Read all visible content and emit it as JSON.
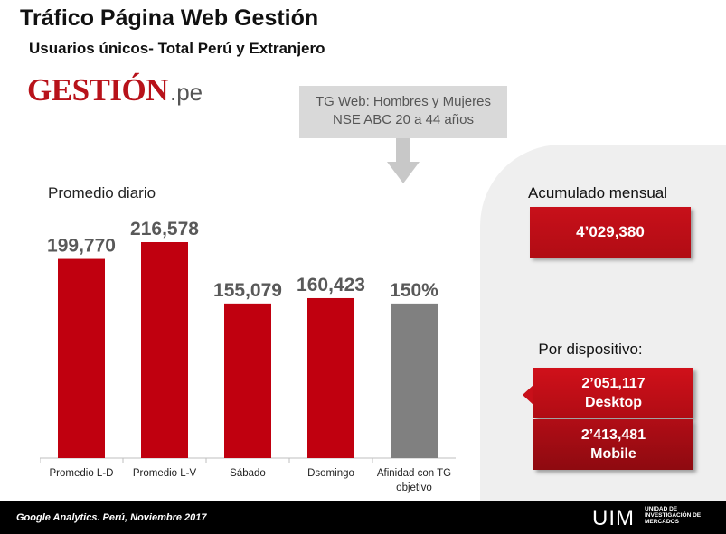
{
  "header": {
    "title": "Tráfico Página Web Gestión",
    "subtitle": "Usuarios únicos- Total Perú y Extranjero"
  },
  "logo": {
    "main": "GESTIÓN",
    "sub": ".pe"
  },
  "callout": {
    "line1": "TG Web: Hombres y Mujeres",
    "line2": "NSE ABC 20 a 44 años"
  },
  "chart_label": "Promedio diario",
  "chart_data": {
    "type": "bar",
    "categories": [
      "Promedio L-D",
      "Promedio L-V",
      "Sábado",
      "Dsomingo",
      "Afinidad con TG objetivo"
    ],
    "category_lines": [
      [
        "Promedio L-D"
      ],
      [
        "Promedio L-V"
      ],
      [
        "Sábado"
      ],
      [
        "Dsomingo"
      ],
      [
        "Afinidad con TG",
        "objetivo"
      ]
    ],
    "values": [
      199770,
      216578,
      155079,
      160423,
      150
    ],
    "data_labels": [
      "199,770",
      "216,578",
      "155,079",
      "160,423",
      "150%"
    ],
    "colors": [
      "#c0000f",
      "#c0000f",
      "#c0000f",
      "#c0000f",
      "#808080"
    ],
    "grid": false
  },
  "panel": {
    "acumulado_label": "Acumulado mensual",
    "acumulado_value": "4’029,380",
    "device_label": "Por dispositivo:",
    "desktop_value": "2’051,117",
    "desktop_label": "Desktop",
    "mobile_value": "2’413,481",
    "mobile_label": "Mobile"
  },
  "footer": {
    "source": "Google Analytics. Perú, Noviembre 2017",
    "uim": "UIM",
    "uim_line1": "UNIDAD DE",
    "uim_line2": "INVESTIGACIÓN DE",
    "uim_line3": "MERCADOS"
  },
  "colors": {
    "brand_red": "#c0000f",
    "gray_bar": "#808080",
    "callout_bg": "#d9d9d9",
    "panel_bg": "#efefef"
  }
}
